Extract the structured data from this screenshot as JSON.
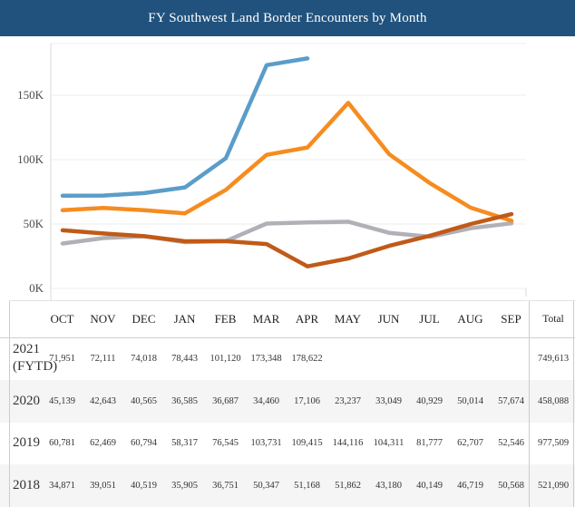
{
  "title": "FY Southwest Land Border Encounters by Month",
  "colors": {
    "title_bar": "#21527d",
    "blue_2021": "#5b9dc9",
    "rust_2020": "#c05a17",
    "orange_2019": "#f68c20",
    "gray_2018": "#b2b0b7",
    "gridline": "#ececec",
    "axis_line": "#d8d8d8"
  },
  "chart_data": {
    "type": "line",
    "title": "FY Southwest Land Border Encounters by Month",
    "categories": [
      "OCT",
      "NOV",
      "DEC",
      "JAN",
      "FEB",
      "MAR",
      "APR",
      "MAY",
      "JUN",
      "JUL",
      "AUG",
      "SEP"
    ],
    "xlabel": "",
    "ylabel": "",
    "ylim": [
      0,
      190000
    ],
    "yticks": [
      "0K",
      "50K",
      "100K",
      "150K"
    ],
    "ytick_values": [
      0,
      50000,
      100000,
      150000
    ],
    "grid": true,
    "legend_position": "none",
    "series": [
      {
        "name": "2021 (FYTD)",
        "color_key": "blue_2021",
        "values": [
          71951,
          72111,
          74018,
          78443,
          101120,
          173348,
          178622,
          null,
          null,
          null,
          null,
          null
        ]
      },
      {
        "name": "2020",
        "color_key": "rust_2020",
        "values": [
          45139,
          42643,
          40565,
          36585,
          36687,
          34460,
          17106,
          23237,
          33049,
          40929,
          50014,
          57674
        ]
      },
      {
        "name": "2019",
        "color_key": "orange_2019",
        "values": [
          60781,
          62469,
          60794,
          58317,
          76545,
          103731,
          109415,
          144116,
          104311,
          81777,
          62707,
          52546
        ]
      },
      {
        "name": "2018",
        "color_key": "gray_2018",
        "values": [
          34871,
          39051,
          40519,
          35905,
          36751,
          50347,
          51168,
          51862,
          43180,
          40149,
          46719,
          50568
        ]
      }
    ]
  },
  "table": {
    "month_headers": [
      "OCT",
      "NOV",
      "DEC",
      "JAN",
      "FEB",
      "MAR",
      "APR",
      "MAY",
      "JUN",
      "JUL",
      "AUG",
      "SEP"
    ],
    "total_header": "Total",
    "rows": [
      {
        "year": "2021",
        "year_suffix": "(FYTD)",
        "values": [
          "71,951",
          "72,111",
          "74,018",
          "78,443",
          "101,120",
          "173,348",
          "178,622",
          "",
          "",
          "",
          "",
          ""
        ],
        "total": "749,613"
      },
      {
        "year": "2020",
        "year_suffix": "",
        "values": [
          "45,139",
          "42,643",
          "40,565",
          "36,585",
          "36,687",
          "34,460",
          "17,106",
          "23,237",
          "33,049",
          "40,929",
          "50,014",
          "57,674"
        ],
        "total": "458,088"
      },
      {
        "year": "2019",
        "year_suffix": "",
        "values": [
          "60,781",
          "62,469",
          "60,794",
          "58,317",
          "76,545",
          "103,731",
          "109,415",
          "144,116",
          "104,311",
          "81,777",
          "62,707",
          "52,546"
        ],
        "total": "977,509"
      },
      {
        "year": "2018",
        "year_suffix": "",
        "values": [
          "34,871",
          "39,051",
          "40,519",
          "35,905",
          "36,751",
          "50,347",
          "51,168",
          "51,862",
          "43,180",
          "40,149",
          "46,719",
          "50,568"
        ],
        "total": "521,090"
      }
    ]
  }
}
